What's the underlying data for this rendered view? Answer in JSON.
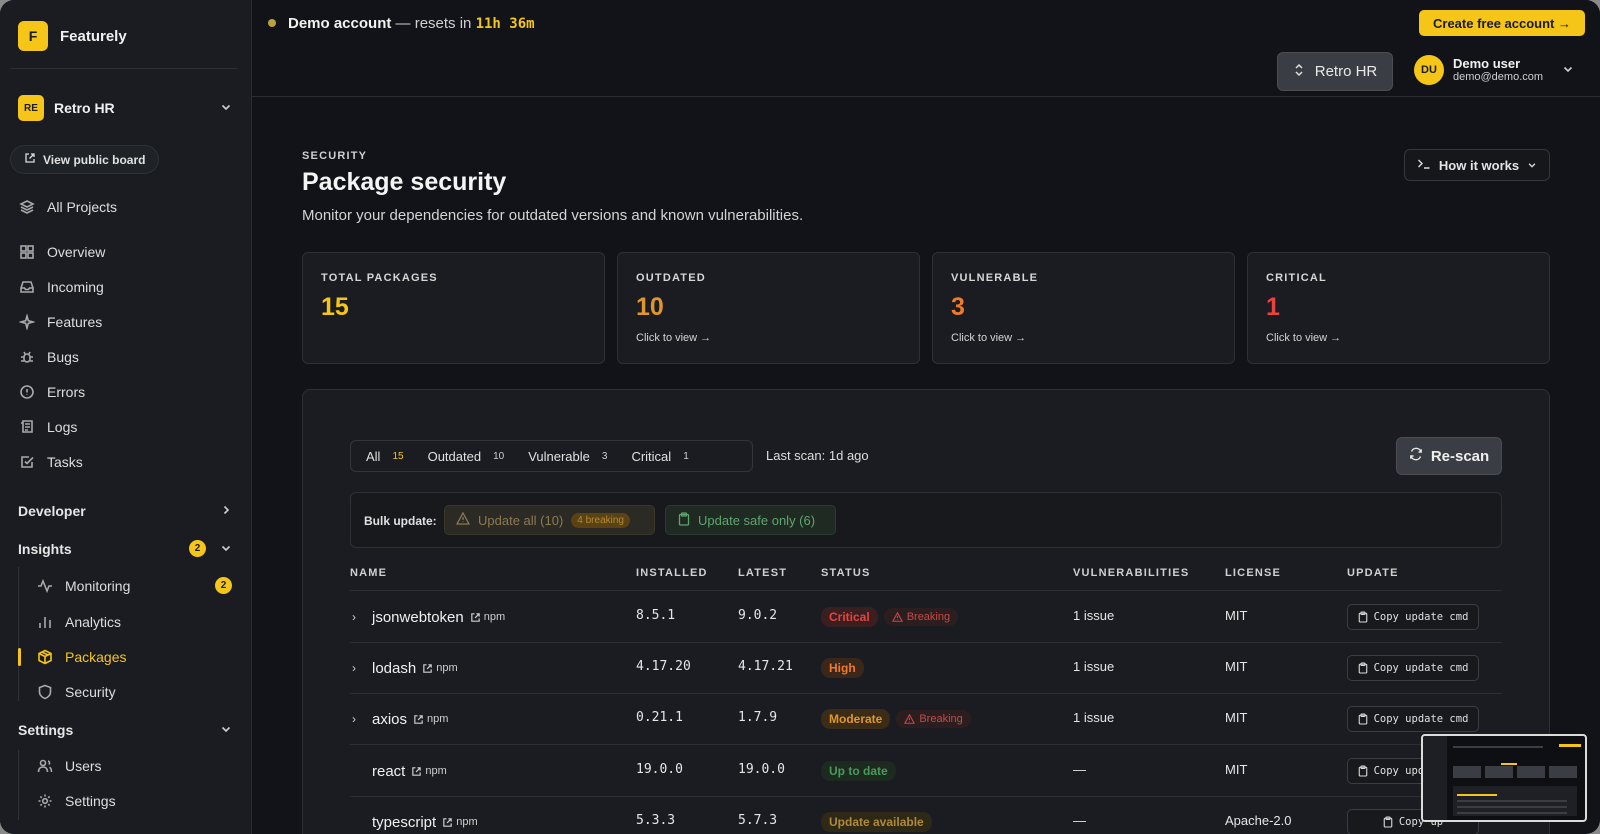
{
  "brand": {
    "logo_letter": "F",
    "name": "Featurely"
  },
  "project": {
    "initials": "RE",
    "name": "Retro HR"
  },
  "public_board": "View public board",
  "nav": {
    "all_projects": "All Projects",
    "overview": "Overview",
    "incoming": "Incoming",
    "features": "Features",
    "bugs": "Bugs",
    "errors": "Errors",
    "logs": "Logs",
    "tasks": "Tasks"
  },
  "sections": {
    "developer": "Developer",
    "insights": {
      "label": "Insights",
      "badge": "2"
    },
    "settings": "Settings"
  },
  "insights_items": {
    "monitoring": {
      "label": "Monitoring",
      "badge": "2"
    },
    "analytics": "Analytics",
    "packages": "Packages",
    "security": "Security"
  },
  "settings_items": {
    "users": "Users",
    "settings": "Settings"
  },
  "topbar": {
    "demo_label": "Demo account",
    "demo_sep": " — resets in ",
    "demo_time": "11h 36m",
    "create_btn": "Create free account →",
    "project_switch": "Retro HR",
    "user_initials": "DU",
    "user_name": "Demo user",
    "user_email": "demo@demo.com"
  },
  "page": {
    "eyebrow": "SECURITY",
    "title": "Package security",
    "subtitle": "Monitor your dependencies for outdated versions and known vulnerabilities.",
    "how_it_works": "How it works"
  },
  "stats": [
    {
      "label": "TOTAL PACKAGES",
      "value": "15",
      "color": "#f5c518",
      "cta": ""
    },
    {
      "label": "OUTDATED",
      "value": "10",
      "color": "#e0962a",
      "cta": "Click to view →"
    },
    {
      "label": "VULNERABLE",
      "value": "3",
      "color": "#f07a2a",
      "cta": "Click to view →"
    },
    {
      "label": "CRITICAL",
      "value": "1",
      "color": "#e8433f",
      "cta": "Click to view →"
    }
  ],
  "filters": [
    {
      "label": "All",
      "count": "15"
    },
    {
      "label": "Outdated",
      "count": "10"
    },
    {
      "label": "Vulnerable",
      "count": "3"
    },
    {
      "label": "Critical",
      "count": "1"
    }
  ],
  "last_scan": "Last scan: 1d ago",
  "rescan": "Re-scan",
  "bulk": {
    "label": "Bulk update:",
    "update_all": "Update all (10)",
    "breaking": "4 breaking",
    "update_safe": "Update safe only (6)"
  },
  "table": {
    "headers": {
      "name": "NAME",
      "installed": "INSTALLED",
      "latest": "LATEST",
      "status": "STATUS",
      "vulnerabilities": "VULNERABILITIES",
      "license": "LICENSE",
      "update": "UPDATE"
    },
    "npm_label": "npm",
    "copy_label": "Copy update cmd",
    "copy_label_cut": "Copy up",
    "breaking_label": "Breaking",
    "rows": [
      {
        "name": "jsonwebtoken",
        "installed": "8.5.1",
        "latest": "9.0.2",
        "status": "Critical",
        "status_fg": "#e8433f",
        "status_bg": "#3a1f21",
        "breaking": true,
        "vulns": "1 issue",
        "license": "MIT",
        "expand": "›"
      },
      {
        "name": "lodash",
        "installed": "4.17.20",
        "latest": "4.17.21",
        "status": "High",
        "status_fg": "#f07a2a",
        "status_bg": "#3a2719",
        "breaking": false,
        "vulns": "1 issue",
        "license": "MIT",
        "expand": "›"
      },
      {
        "name": "axios",
        "installed": "0.21.1",
        "latest": "1.7.9",
        "status": "Moderate",
        "status_fg": "#e0962a",
        "status_bg": "#3a2c17",
        "breaking": true,
        "vulns": "1 issue",
        "license": "MIT",
        "expand": "›"
      },
      {
        "name": "react",
        "installed": "19.0.0",
        "latest": "19.0.0",
        "status": "Up to date",
        "status_fg": "#4a9a5c",
        "status_bg": "#1c2a20",
        "breaking": false,
        "vulns": "—",
        "license": "MIT",
        "expand": ""
      },
      {
        "name": "typescript",
        "installed": "5.3.3",
        "latest": "5.7.3",
        "status": "Update available",
        "status_fg": "#b08a36",
        "status_bg": "#2e2817",
        "breaking": false,
        "vulns": "—",
        "license": "Apache-2.0",
        "expand": ""
      }
    ]
  }
}
